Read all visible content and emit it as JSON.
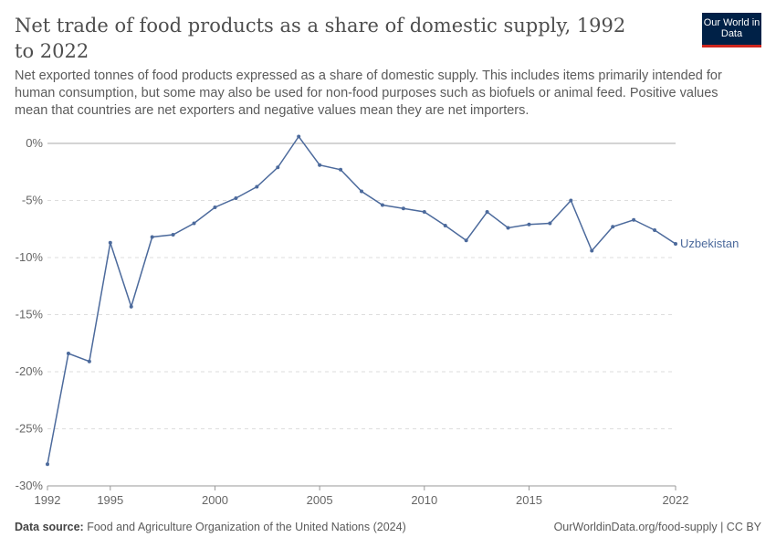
{
  "title": "Net trade of food products as a share of domestic supply, 1992 to 2022",
  "subtitle": "Net exported tonnes of food products expressed as a share of domestic supply. This includes items primarily intended for human consumption, but some may also be used for non-food purposes such as biofuels or animal feed. Positive values mean that countries are net exporters and negative values mean they are net importers.",
  "logo": "Our World in Data",
  "footer": {
    "source_label": "Data source:",
    "source": "Food and Agriculture Organization of the United Nations (2024)",
    "right": "OurWorldinData.org/food-supply | CC BY"
  },
  "chart_data": {
    "type": "line",
    "title": "Net trade of food products as a share of domestic supply, 1992 to 2022",
    "xlabel": "",
    "ylabel": "",
    "ylim": [
      -30,
      0
    ],
    "yticks": [
      0,
      -5,
      -10,
      -15,
      -20,
      -25,
      -30
    ],
    "ytick_labels": [
      "0%",
      "-5%",
      "-10%",
      "-15%",
      "-20%",
      "-25%",
      "-30%"
    ],
    "xticks": [
      1992,
      1995,
      2000,
      2005,
      2010,
      2015,
      2022
    ],
    "series": [
      {
        "name": "Uzbekistan",
        "color": "#4c6a9c",
        "x": [
          1992,
          1993,
          1994,
          1995,
          1996,
          1997,
          1998,
          1999,
          2000,
          2001,
          2002,
          2003,
          2004,
          2005,
          2006,
          2007,
          2008,
          2009,
          2010,
          2011,
          2012,
          2013,
          2014,
          2015,
          2016,
          2017,
          2018,
          2019,
          2020,
          2021,
          2022
        ],
        "values": [
          -28.1,
          -18.4,
          -19.1,
          -8.7,
          -14.3,
          -8.2,
          -8.0,
          -7.0,
          -5.6,
          -4.8,
          -3.8,
          -2.1,
          0.6,
          -1.9,
          -2.3,
          -4.2,
          -5.4,
          -5.7,
          -6.0,
          -7.2,
          -8.5,
          -6.0,
          -7.4,
          -7.1,
          -7.0,
          -5.0,
          -9.4,
          -7.3,
          -6.7,
          -7.6,
          -8.8
        ]
      }
    ]
  }
}
